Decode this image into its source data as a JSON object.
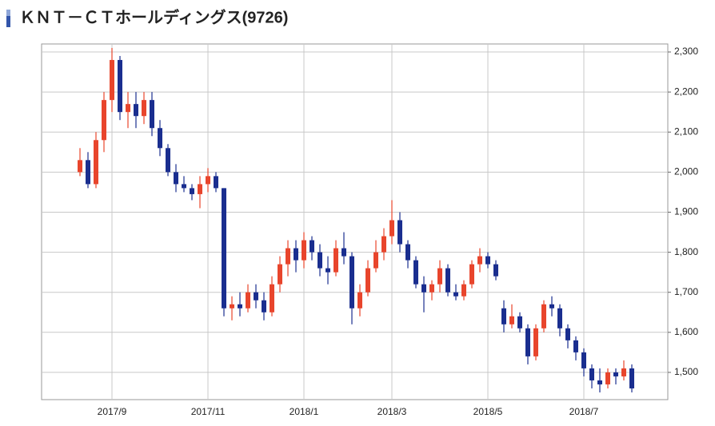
{
  "chart_data": {
    "type": "candlestick",
    "title": "ＫＮＴ－ＣＴホールディングス(9726)",
    "categories": [
      null,
      null,
      null,
      null,
      "2017/9",
      null,
      null,
      null,
      null,
      null,
      null,
      null,
      null,
      null,
      null,
      null,
      "2017/11",
      null,
      null,
      null,
      null,
      null,
      null,
      null,
      null,
      null,
      null,
      null,
      "2018/1",
      null,
      null,
      null,
      null,
      null,
      null,
      null,
      null,
      null,
      null,
      "2018/3",
      null,
      null,
      null,
      null,
      null,
      null,
      null,
      null,
      null,
      null,
      null,
      "2018/5",
      null,
      null,
      null,
      null,
      null,
      null,
      null,
      null,
      null,
      null,
      null,
      "2018/7",
      null,
      null,
      null,
      null,
      null,
      null
    ],
    "open": [
      2000,
      2030,
      1970,
      2080,
      2180,
      2280,
      2150,
      2170,
      2140,
      2180,
      2110,
      2060,
      2000,
      1970,
      1960,
      1945,
      1970,
      1990,
      1960,
      1660,
      1670,
      1660,
      1700,
      1680,
      1650,
      1720,
      1770,
      1810,
      1780,
      1830,
      1800,
      1760,
      1750,
      1810,
      1790,
      1660,
      1700,
      1760,
      1800,
      1840,
      1880,
      1820,
      1780,
      1720,
      1700,
      1720,
      1760,
      1700,
      1690,
      1720,
      1770,
      1790,
      1770,
      1660,
      1620,
      1640,
      1610,
      1540,
      1610,
      1670,
      1660,
      1610,
      1580,
      1550,
      1510,
      1480,
      1470,
      1500,
      1490,
      1510
    ],
    "high": [
      2060,
      2050,
      2100,
      2200,
      2310,
      2290,
      2200,
      2200,
      2200,
      2200,
      2130,
      2070,
      2020,
      1990,
      1970,
      1990,
      2010,
      2000,
      1960,
      1690,
      1700,
      1720,
      1720,
      1700,
      1740,
      1790,
      1830,
      1830,
      1850,
      1840,
      1820,
      1790,
      1830,
      1850,
      1800,
      1720,
      1780,
      1830,
      1860,
      1930,
      1900,
      1830,
      1790,
      1740,
      1730,
      1780,
      1770,
      1720,
      1730,
      1780,
      1810,
      1800,
      1780,
      1680,
      1670,
      1650,
      1620,
      1620,
      1680,
      1690,
      1670,
      1620,
      1590,
      1560,
      1520,
      1510,
      1510,
      1510,
      1530,
      1520
    ],
    "low": [
      1990,
      1960,
      1960,
      2050,
      2150,
      2130,
      2110,
      2110,
      2120,
      2090,
      2040,
      1990,
      1950,
      1950,
      1930,
      1910,
      1950,
      1950,
      1640,
      1630,
      1640,
      1650,
      1660,
      1630,
      1640,
      1700,
      1740,
      1750,
      1760,
      1780,
      1740,
      1720,
      1740,
      1770,
      1620,
      1640,
      1690,
      1750,
      1780,
      1820,
      1800,
      1760,
      1710,
      1650,
      1680,
      1700,
      1690,
      1680,
      1680,
      1710,
      1750,
      1760,
      1730,
      1600,
      1610,
      1600,
      1520,
      1530,
      1600,
      1640,
      1590,
      1560,
      1530,
      1490,
      1460,
      1450,
      1460,
      1470,
      1480,
      1450
    ],
    "close": [
      2030,
      1970,
      2080,
      2180,
      2280,
      2150,
      2170,
      2140,
      2180,
      2110,
      2060,
      2000,
      1970,
      1960,
      1945,
      1970,
      1990,
      1960,
      1660,
      1670,
      1660,
      1700,
      1680,
      1650,
      1720,
      1770,
      1810,
      1780,
      1830,
      1800,
      1760,
      1750,
      1810,
      1790,
      1660,
      1700,
      1760,
      1800,
      1840,
      1880,
      1820,
      1780,
      1720,
      1700,
      1720,
      1760,
      1700,
      1690,
      1720,
      1770,
      1790,
      1770,
      1740,
      1620,
      1640,
      1610,
      1540,
      1610,
      1670,
      1660,
      1610,
      1580,
      1550,
      1510,
      1480,
      1470,
      1500,
      1490,
      1510,
      1460
    ],
    "up_color": "#e8452c",
    "down_color": "#1a2e8f",
    "ylim": [
      1432,
      2320
    ],
    "yticks": [
      {
        "value": 1500,
        "label": "1,500"
      },
      {
        "value": 1600,
        "label": "1,600"
      },
      {
        "value": 1700,
        "label": "1,700"
      },
      {
        "value": 1800,
        "label": "1,800"
      },
      {
        "value": 1900,
        "label": "1,900"
      },
      {
        "value": 2000,
        "label": "2,000"
      },
      {
        "value": 2100,
        "label": "2,100"
      },
      {
        "value": 2200,
        "label": "2,200"
      },
      {
        "value": 2300,
        "label": "2,300"
      }
    ],
    "grid": true
  }
}
